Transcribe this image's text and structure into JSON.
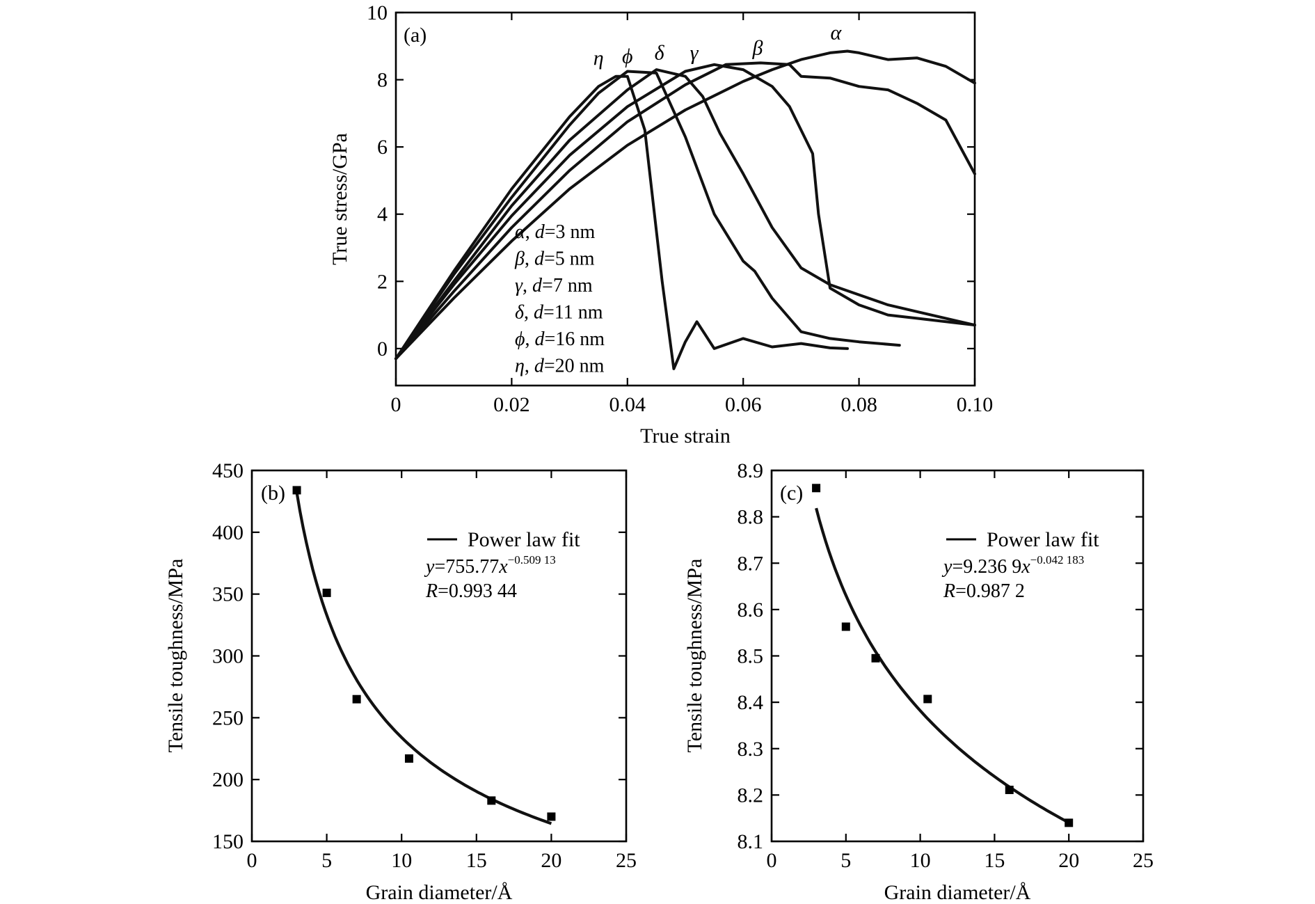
{
  "chart_data": [
    {
      "type": "line",
      "panel_label": "(a)",
      "xlabel": "True strain",
      "ylabel": "True stress/GPa",
      "xlim": [
        0,
        0.1
      ],
      "ylim": [
        -1.1,
        10
      ],
      "x_tick_labels": [
        "0",
        "0.02",
        "0.04",
        "0.06",
        "0.08",
        "0.10"
      ],
      "y_tick_labels": [
        "0",
        "2",
        "4",
        "6",
        "8",
        "10"
      ],
      "legend": [
        {
          "symbol": "α",
          "text": ", d=3 nm"
        },
        {
          "symbol": "β",
          "text": ", d=5 nm"
        },
        {
          "symbol": "γ",
          "text": ", d=7 nm"
        },
        {
          "symbol": "δ",
          "text": ", d=11 nm"
        },
        {
          "symbol": "ϕ",
          "text": ", d=16 nm"
        },
        {
          "symbol": "η",
          "text": ", d=20 nm"
        }
      ],
      "series": [
        {
          "name": "α",
          "x": [
            0,
            0.01,
            0.02,
            0.03,
            0.04,
            0.05,
            0.06,
            0.065,
            0.07,
            0.075,
            0.078,
            0.08,
            0.085,
            0.09,
            0.095,
            0.1
          ],
          "y": [
            -0.3,
            1.5,
            3.2,
            4.75,
            6.05,
            7.1,
            7.95,
            8.3,
            8.6,
            8.8,
            8.85,
            8.8,
            8.6,
            8.65,
            8.4,
            7.9
          ]
        },
        {
          "name": "β",
          "x": [
            0,
            0.01,
            0.02,
            0.03,
            0.04,
            0.05,
            0.057,
            0.063,
            0.068,
            0.07,
            0.075,
            0.08,
            0.085,
            0.09,
            0.095,
            0.1
          ],
          "y": [
            -0.3,
            1.7,
            3.6,
            5.3,
            6.75,
            7.85,
            8.45,
            8.5,
            8.45,
            8.1,
            8.05,
            7.8,
            7.7,
            7.3,
            6.8,
            5.2
          ]
        },
        {
          "name": "γ",
          "x": [
            0,
            0.01,
            0.02,
            0.03,
            0.04,
            0.05,
            0.055,
            0.06,
            0.065,
            0.068,
            0.072,
            0.073,
            0.075,
            0.08,
            0.085,
            0.09,
            0.1
          ],
          "y": [
            -0.3,
            1.9,
            3.95,
            5.75,
            7.2,
            8.25,
            8.45,
            8.3,
            7.8,
            7.2,
            5.8,
            4.0,
            1.8,
            1.3,
            1.0,
            0.9,
            0.7
          ]
        },
        {
          "name": "δ",
          "x": [
            0,
            0.01,
            0.02,
            0.03,
            0.04,
            0.045,
            0.05,
            0.053,
            0.056,
            0.06,
            0.065,
            0.07,
            0.075,
            0.08,
            0.085,
            0.09,
            0.1
          ],
          "y": [
            -0.3,
            2.0,
            4.25,
            6.2,
            7.7,
            8.3,
            8.1,
            7.5,
            6.4,
            5.2,
            3.6,
            2.4,
            1.9,
            1.6,
            1.3,
            1.1,
            0.7
          ]
        },
        {
          "name": "ϕ",
          "x": [
            0,
            0.01,
            0.02,
            0.03,
            0.035,
            0.04,
            0.045,
            0.05,
            0.055,
            0.06,
            0.062,
            0.065,
            0.07,
            0.075,
            0.08,
            0.087
          ],
          "y": [
            -0.3,
            2.2,
            4.5,
            6.65,
            7.6,
            8.25,
            8.2,
            6.3,
            4.0,
            2.6,
            2.3,
            1.5,
            0.5,
            0.3,
            0.2,
            0.1
          ]
        },
        {
          "name": "η",
          "x": [
            0,
            0.01,
            0.02,
            0.03,
            0.035,
            0.038,
            0.04,
            0.043,
            0.046,
            0.048,
            0.05,
            0.052,
            0.055,
            0.06,
            0.065,
            0.07,
            0.075,
            0.078
          ],
          "y": [
            -0.3,
            2.3,
            4.75,
            6.9,
            7.8,
            8.1,
            8.1,
            6.5,
            2.0,
            -0.6,
            0.2,
            0.8,
            0.0,
            0.3,
            0.05,
            0.15,
            0.02,
            0.0
          ]
        }
      ],
      "curve_labels": [
        "η",
        "ϕ",
        "δ",
        "γ",
        "β",
        "α"
      ]
    },
    {
      "type": "scatter",
      "panel_label": "(b)",
      "xlabel": "Grain diameter/Å",
      "ylabel": "Tensile toughness/MPa",
      "xlim": [
        0,
        25
      ],
      "ylim": [
        150,
        450
      ],
      "x_tick_labels": [
        "0",
        "5",
        "10",
        "15",
        "20",
        "25"
      ],
      "y_tick_labels": [
        "150",
        "200",
        "250",
        "300",
        "350",
        "400",
        "450"
      ],
      "points": {
        "x": [
          3,
          5,
          7,
          10.5,
          16,
          20
        ],
        "y": [
          434,
          351,
          265,
          217,
          183,
          170
        ]
      },
      "fit": {
        "label": "Power law fit",
        "a": 755.77,
        "b": -0.50913,
        "x_range": [
          3,
          20
        ],
        "equation_prefix": "y",
        "equation_coef": "=755.77",
        "equation_var": "x",
        "equation_exp": "−0.509 13",
        "r_label": "R",
        "r_value": "=0.993 44"
      }
    },
    {
      "type": "scatter",
      "panel_label": "(c)",
      "xlabel": "Grain diameter/Å",
      "ylabel": "Tensile toughness/MPa",
      "xlim": [
        0,
        25
      ],
      "ylim": [
        8.1,
        8.9
      ],
      "x_tick_labels": [
        "0",
        "5",
        "10",
        "15",
        "20",
        "25"
      ],
      "y_tick_labels": [
        "8.1",
        "8.2",
        "8.3",
        "8.4",
        "8.5",
        "8.6",
        "8.7",
        "8.8",
        "8.9"
      ],
      "points": {
        "x": [
          3,
          5,
          7,
          10.5,
          16,
          20
        ],
        "y": [
          8.862,
          8.563,
          8.495,
          8.407,
          8.211,
          8.14
        ]
      },
      "fit": {
        "label": "Power law fit",
        "a": 9.2369,
        "b": -0.042183,
        "x_range": [
          3,
          20
        ],
        "equation_prefix": "y",
        "equation_coef": "=9.236 9",
        "equation_var": "x",
        "equation_exp": "−0.042 183",
        "r_label": "R",
        "r_value": "=0.987 2"
      }
    }
  ]
}
